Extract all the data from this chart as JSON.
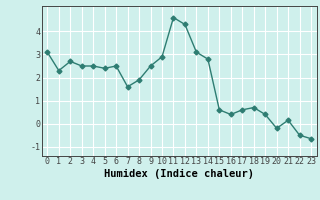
{
  "x": [
    0,
    1,
    2,
    3,
    4,
    5,
    6,
    7,
    8,
    9,
    10,
    11,
    12,
    13,
    14,
    15,
    16,
    17,
    18,
    19,
    20,
    21,
    22,
    23
  ],
  "y": [
    3.1,
    2.3,
    2.7,
    2.5,
    2.5,
    2.4,
    2.5,
    1.6,
    1.9,
    2.5,
    2.9,
    4.6,
    4.3,
    3.1,
    2.8,
    0.6,
    0.4,
    0.6,
    0.7,
    0.4,
    -0.2,
    0.15,
    -0.5,
    -0.65
  ],
  "xlabel": "Humidex (Indice chaleur)",
  "xlim": [
    -0.5,
    23.5
  ],
  "ylim": [
    -1.4,
    5.1
  ],
  "yticks": [
    -1,
    0,
    1,
    2,
    3,
    4
  ],
  "xticks": [
    0,
    1,
    2,
    3,
    4,
    5,
    6,
    7,
    8,
    9,
    10,
    11,
    12,
    13,
    14,
    15,
    16,
    17,
    18,
    19,
    20,
    21,
    22,
    23
  ],
  "line_color": "#2e7d72",
  "marker": "D",
  "marker_size": 2.5,
  "line_width": 1.0,
  "bg_color": "#cff0ec",
  "grid_color": "#ffffff",
  "tick_color": "#444444",
  "xlabel_fontsize": 7.5,
  "tick_fontsize": 6.0
}
